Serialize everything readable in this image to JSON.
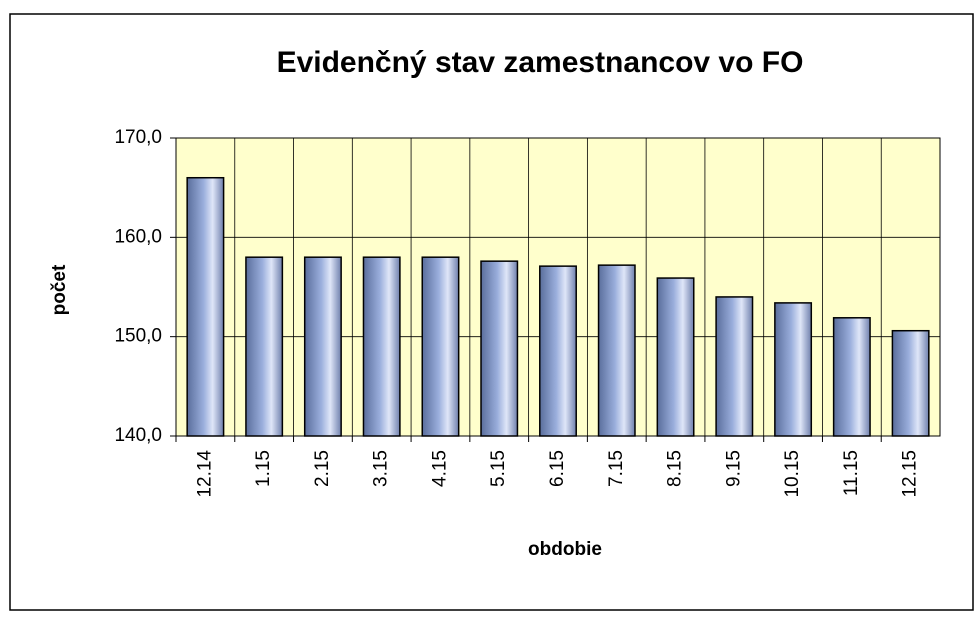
{
  "chart_data": {
    "type": "bar",
    "title": "Evidenčný stav zamestnancov vo FO",
    "x_label": "obdobie",
    "y_label": "počet",
    "categories": [
      "12.14",
      "1.15",
      "2.15",
      "3.15",
      "4.15",
      "5.15",
      "6.15",
      "7.15",
      "8.15",
      "9.15",
      "10.15",
      "11.15",
      "12.15"
    ],
    "values": [
      166.0,
      158.0,
      158.0,
      158.0,
      158.0,
      157.6,
      157.1,
      157.2,
      155.9,
      154.0,
      153.4,
      151.9,
      150.6
    ],
    "color": "#9aaedc",
    "plot_background": "#ffffcc",
    "ylim": [
      140,
      170
    ],
    "yticks": [
      {
        "value": 140,
        "label": "140,0"
      },
      {
        "value": 150,
        "label": "150,0"
      },
      {
        "value": 160,
        "label": "160,0"
      },
      {
        "value": 170,
        "label": "170,0"
      }
    ],
    "grid": true
  }
}
